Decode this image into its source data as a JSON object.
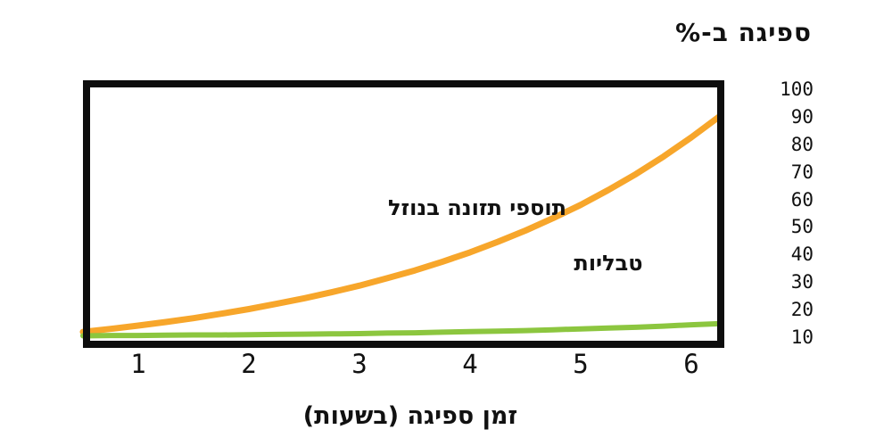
{
  "header": {
    "title": "ספיגה ב-%"
  },
  "plot": {
    "frame_color": "#0d0d0d",
    "liquid_label": "תוספי תזונה בנוזל",
    "tablets_label": "טבליות"
  },
  "x_axis": {
    "title": "זמן ספיגה (בשעות)",
    "tick_labels": [
      "1",
      "2",
      "3",
      "4",
      "5",
      "6"
    ]
  },
  "y_axis": {
    "tick_labels": [
      "100",
      "90",
      "80",
      "70",
      "60",
      "50",
      "40",
      "30",
      "20",
      "10"
    ]
  },
  "colors": {
    "liquid": "#F7A62B",
    "tablets": "#8CC63F",
    "frame": "#0d0d0d",
    "text": "#111111"
  },
  "chart_data": {
    "type": "line",
    "title": "ספיגה ב-%",
    "xlabel": "זמן ספיגה (בשעות)",
    "ylabel": "ספיגה ב-%",
    "x_ticks": [
      1,
      2,
      3,
      4,
      5,
      6
    ],
    "y_ticks": [
      10,
      20,
      30,
      40,
      50,
      60,
      70,
      80,
      90,
      100
    ],
    "xlim": [
      0.5,
      6.25
    ],
    "ylim": [
      9.5,
      100.5
    ],
    "grid": false,
    "legend_position": "inline-annotations",
    "x": [
      0.5,
      0.75,
      1,
      1.25,
      1.5,
      1.75,
      2,
      2.25,
      2.5,
      2.75,
      3,
      3.25,
      3.5,
      3.75,
      4,
      4.25,
      4.5,
      4.75,
      5,
      5.25,
      5.5,
      5.75,
      6,
      6.25
    ],
    "series": [
      {
        "name": "תוספי תזונה בנוזל",
        "color": "#F7A62B",
        "values": [
          11.9,
          13,
          14.2,
          15.5,
          16.9,
          18.5,
          20.2,
          22.1,
          24.1,
          26.3,
          28.7,
          31.4,
          34.2,
          37.4,
          40.8,
          44.6,
          48.7,
          53.2,
          58,
          63.4,
          69.2,
          75.6,
          82.5,
          90
        ]
      },
      {
        "name": "טבליות",
        "color": "#8CC63F",
        "values": [
          10.5,
          10.6,
          10.6,
          10.7,
          10.8,
          10.8,
          10.9,
          11,
          11.1,
          11.2,
          11.3,
          11.5,
          11.6,
          11.8,
          12,
          12.2,
          12.4,
          12.7,
          13,
          13.3,
          13.6,
          14,
          14.5,
          14.9
        ]
      }
    ]
  }
}
